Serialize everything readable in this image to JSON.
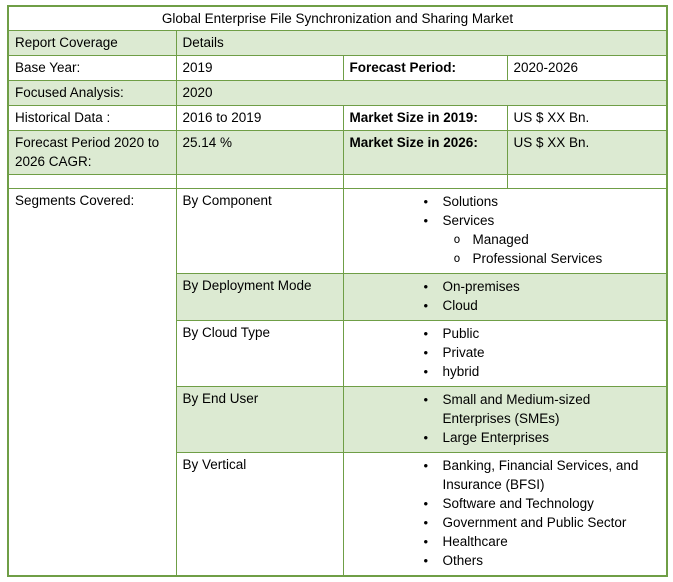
{
  "title": "Global Enterprise File Synchronization and Sharing Market",
  "colors": {
    "row_shading_green": "#dcead2",
    "border_green": "#6f9e46",
    "background": "#ffffff",
    "text": "#000000"
  },
  "glyphs": {
    "l1": "•",
    "l2": "o"
  },
  "header": {
    "report_coverage": "Report Coverage",
    "details": "Details"
  },
  "rows": {
    "base_year": {
      "label": "Base Year:",
      "value": "2019",
      "right_label": "Forecast Period:",
      "right_value": "2020-2026"
    },
    "focused_analysis": {
      "label": "Focused Analysis:",
      "value": "2020"
    },
    "historical_data": {
      "label": "Historical Data :",
      "value": "2016 to 2019",
      "right_label": "Market Size in 2019:",
      "right_value": "US $ XX Bn."
    },
    "cagr": {
      "label": "Forecast Period 2020 to 2026 CAGR:",
      "value": "25.14 %",
      "right_label": "Market Size in 2026:",
      "right_value": "US $ XX Bn."
    }
  },
  "segments": {
    "label": "Segments Covered:",
    "groups": [
      {
        "name": "By Component",
        "shaded": false,
        "items": [
          {
            "text": "Solutions",
            "level": 1
          },
          {
            "text": "Services",
            "level": 1
          },
          {
            "text": "Managed",
            "level": 2
          },
          {
            "text": "Professional Services",
            "level": 2
          }
        ]
      },
      {
        "name": "By Deployment Mode",
        "shaded": true,
        "items": [
          {
            "text": "On-premises",
            "level": 1
          },
          {
            "text": "Cloud",
            "level": 1
          }
        ]
      },
      {
        "name": "By Cloud Type",
        "shaded": false,
        "items": [
          {
            "text": "Public",
            "level": 1
          },
          {
            "text": "Private",
            "level": 1
          },
          {
            "text": "hybrid",
            "level": 1
          }
        ]
      },
      {
        "name": "By End User",
        "shaded": true,
        "items": [
          {
            "text": "Small and Medium-sized Enterprises (SMEs)",
            "level": 1
          },
          {
            "text": "Large Enterprises",
            "level": 1
          }
        ]
      },
      {
        "name": "By Vertical",
        "shaded": false,
        "items": [
          {
            "text": "Banking, Financial Services, and Insurance (BFSI)",
            "level": 1
          },
          {
            "text": "Software and Technology",
            "level": 1
          },
          {
            "text": "Government and Public Sector",
            "level": 1
          },
          {
            "text": "Healthcare",
            "level": 1
          },
          {
            "text": "Others",
            "level": 1
          }
        ]
      }
    ]
  }
}
